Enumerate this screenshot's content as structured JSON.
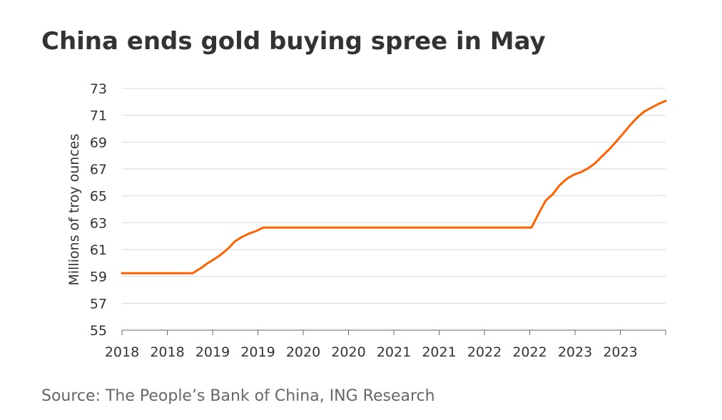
{
  "title": "China ends gold buying spree in May",
  "source": "Source: The People’s Bank of China, ING Research",
  "colors": {
    "line": "#FF6200",
    "grid": "#d9d9d9",
    "axis": "#666666",
    "text": "#333333"
  },
  "chart_data": {
    "type": "line",
    "title": "China ends gold buying spree in May",
    "xlabel": "",
    "ylabel": "Millions of troy ounces",
    "ylim": [
      55,
      73
    ],
    "yticks": [
      55,
      57,
      59,
      61,
      63,
      65,
      67,
      69,
      71,
      73
    ],
    "xtick_labels": [
      "2018",
      "2018",
      "2019",
      "2019",
      "2020",
      "2020",
      "2021",
      "2021",
      "2022",
      "2022",
      "2023",
      "2023"
    ],
    "grid": true,
    "legend": "none",
    "series": [
      {
        "x": [
          "2018-01",
          "2018-02",
          "2018-03",
          "2018-04",
          "2018-05",
          "2018-06",
          "2018-07",
          "2018-08",
          "2018-09",
          "2018-10",
          "2018-11",
          "2018-12",
          "2019-01",
          "2019-02",
          "2019-03",
          "2019-04",
          "2019-05",
          "2019-06",
          "2019-07",
          "2019-08",
          "2019-09",
          "2019-10",
          "2019-11",
          "2019-12",
          "2020-01",
          "2020-02",
          "2020-03",
          "2020-04",
          "2020-05",
          "2020-06",
          "2020-07",
          "2020-08",
          "2020-09",
          "2020-10",
          "2020-11",
          "2020-12",
          "2021-01",
          "2021-02",
          "2021-03",
          "2021-04",
          "2021-05",
          "2021-06",
          "2021-07",
          "2021-08",
          "2021-09",
          "2021-10",
          "2021-11",
          "2021-12",
          "2022-01",
          "2022-02",
          "2022-03",
          "2022-04",
          "2022-05",
          "2022-06",
          "2022-07",
          "2022-08",
          "2022-09",
          "2022-10",
          "2022-11",
          "2022-12",
          "2023-01",
          "2023-02",
          "2023-03",
          "2023-04",
          "2023-05",
          "2023-06",
          "2023-07",
          "2023-08",
          "2023-09",
          "2023-10",
          "2023-11",
          "2023-12",
          "2024-01",
          "2024-02",
          "2024-03",
          "2024-04",
          "2024-05",
          "2024-06"
        ],
        "values": [
          59.24,
          59.24,
          59.24,
          59.24,
          59.24,
          59.24,
          59.24,
          59.24,
          59.24,
          59.24,
          59.24,
          59.56,
          59.94,
          60.26,
          60.62,
          61.06,
          61.61,
          61.94,
          62.19,
          62.38,
          62.64,
          62.64,
          62.64,
          62.64,
          62.64,
          62.64,
          62.64,
          62.64,
          62.64,
          62.64,
          62.64,
          62.64,
          62.64,
          62.64,
          62.64,
          62.64,
          62.64,
          62.64,
          62.64,
          62.64,
          62.64,
          62.64,
          62.64,
          62.64,
          62.64,
          62.64,
          62.64,
          62.64,
          62.64,
          62.64,
          62.64,
          62.64,
          62.64,
          62.64,
          62.64,
          62.64,
          62.64,
          62.64,
          62.64,
          63.67,
          64.64,
          65.12,
          65.8,
          66.27,
          66.58,
          66.76,
          67.04,
          67.42,
          67.95,
          68.46,
          69.04,
          69.65,
          70.28,
          70.84,
          71.29,
          71.57,
          71.85,
          72.07
        ]
      }
    ]
  }
}
